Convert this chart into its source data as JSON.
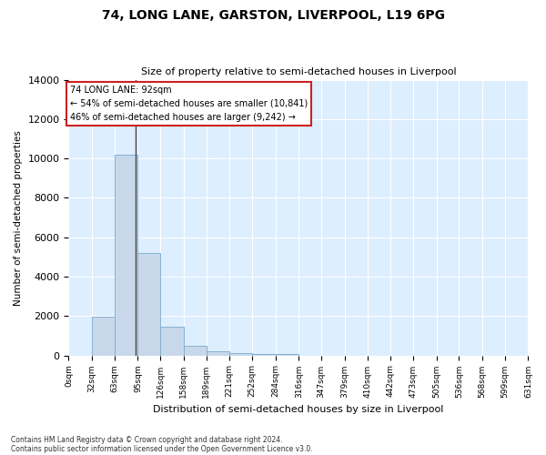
{
  "title": "74, LONG LANE, GARSTON, LIVERPOOL, L19 6PG",
  "subtitle": "Size of property relative to semi-detached houses in Liverpool",
  "xlabel": "Distribution of semi-detached houses by size in Liverpool",
  "ylabel": "Number of semi-detached properties",
  "annotation_title": "74 LONG LANE: 92sqm",
  "annotation_line2": "← 54% of semi-detached houses are smaller (10,841)",
  "annotation_line3": "46% of semi-detached houses are larger (9,242) →",
  "footer_line1": "Contains HM Land Registry data © Crown copyright and database right 2024.",
  "footer_line2": "Contains public sector information licensed under the Open Government Licence v3.0.",
  "property_size_sqm": 92,
  "bin_edges": [
    0,
    32,
    63,
    95,
    126,
    158,
    189,
    221,
    252,
    284,
    316,
    347,
    379,
    410,
    442,
    473,
    505,
    536,
    568,
    599,
    631
  ],
  "bin_counts": [
    0,
    1950,
    10200,
    5200,
    1450,
    480,
    200,
    100,
    80,
    50,
    0,
    0,
    0,
    0,
    0,
    0,
    0,
    0,
    0,
    0
  ],
  "bar_color_normal": "#c8d8ea",
  "bar_color_edge": "#7aaacc",
  "vline_color": "#444444",
  "vline_x": 92,
  "annotation_box_facecolor": "#ffffff",
  "annotation_box_edgecolor": "#cc2222",
  "plot_bg_color": "#ddeeff",
  "ylim": [
    0,
    14000
  ],
  "yticks": [
    0,
    2000,
    4000,
    6000,
    8000,
    10000,
    12000,
    14000
  ],
  "tick_labels": [
    "0sqm",
    "32sqm",
    "63sqm",
    "95sqm",
    "126sqm",
    "158sqm",
    "189sqm",
    "221sqm",
    "252sqm",
    "284sqm",
    "316sqm",
    "347sqm",
    "379sqm",
    "410sqm",
    "442sqm",
    "473sqm",
    "505sqm",
    "536sqm",
    "568sqm",
    "599sqm",
    "631sqm"
  ]
}
